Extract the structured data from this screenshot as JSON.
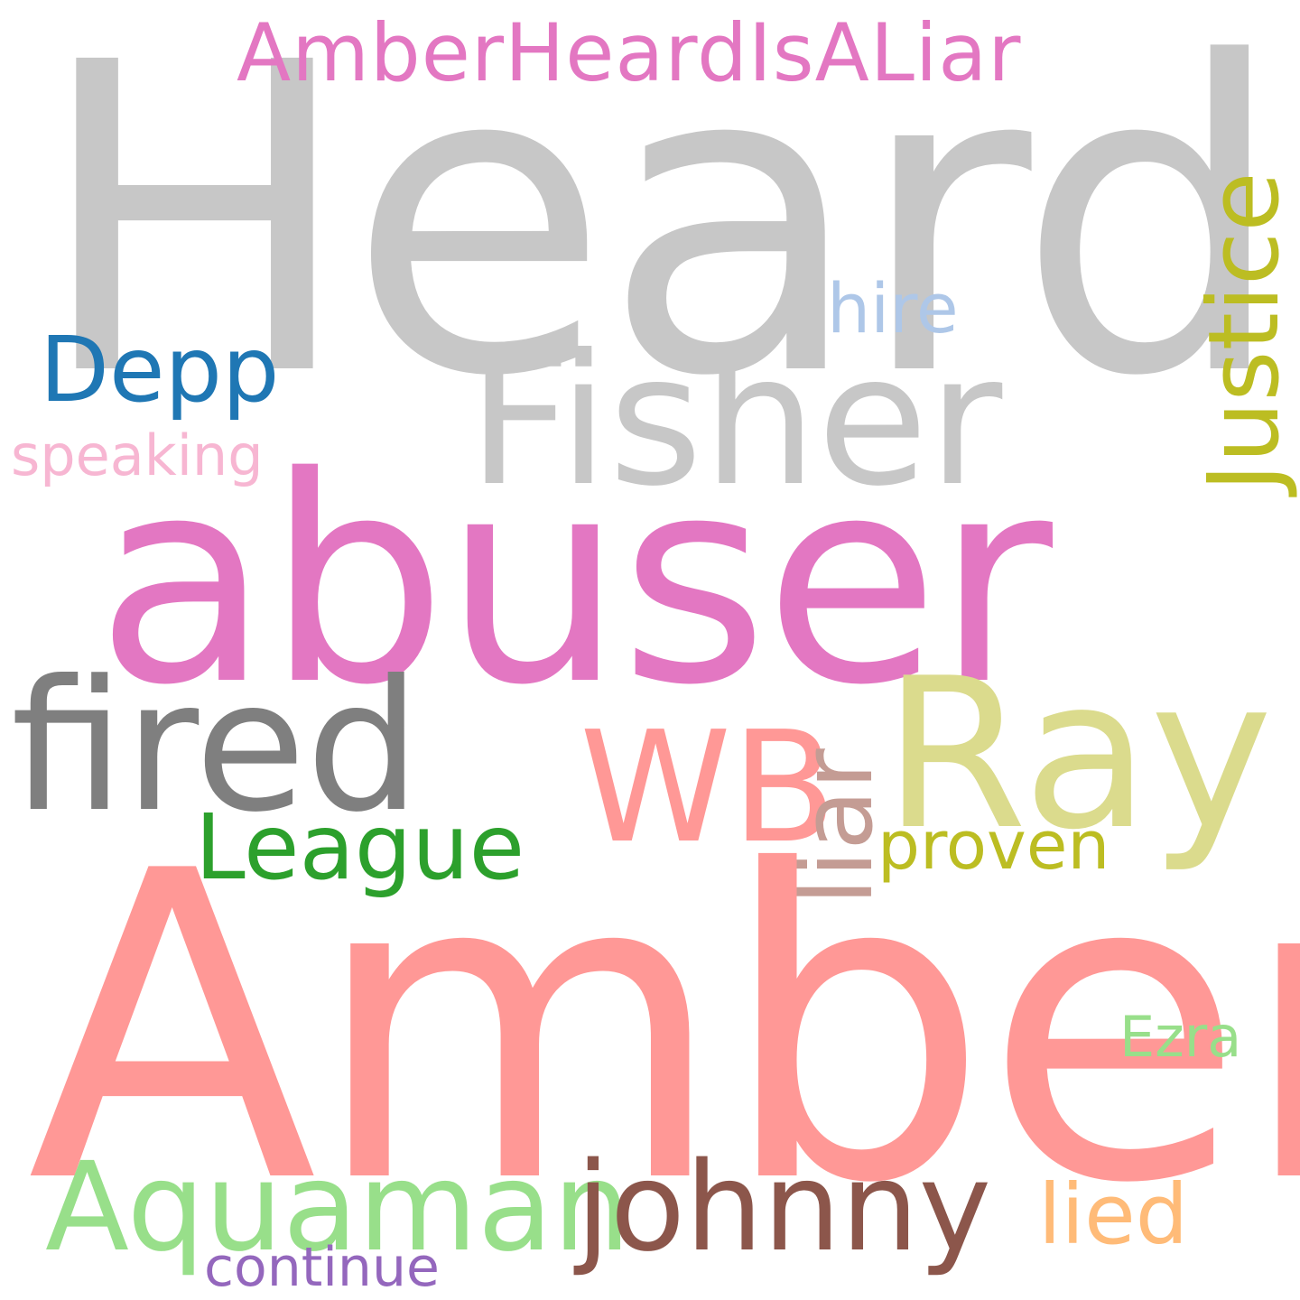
{
  "words": {
    "heard": {
      "text": "Heard",
      "color": "#c7c7c7"
    },
    "amber": {
      "text": "Amber",
      "color": "#ff9896"
    },
    "abuser": {
      "text": "abuser",
      "color": "#e377c2"
    },
    "fisher": {
      "text": "Fisher",
      "color": "#c7c7c7"
    },
    "ray": {
      "text": "Ray",
      "color": "#dbdb8d"
    },
    "fired": {
      "text": "fired",
      "color": "#7f7f7f"
    },
    "wb": {
      "text": "WB",
      "color": "#ff9896"
    },
    "aquaman": {
      "text": "Aquaman",
      "color": "#98df8a"
    },
    "johnny": {
      "text": "johnny",
      "color": "#8c564b"
    },
    "amberliar": {
      "text": "AmberHeardIsALiar",
      "color": "#e377c2"
    },
    "justice": {
      "text": "Justice",
      "color": "#bcbd22"
    },
    "league": {
      "text": "League",
      "color": "#2ca02c"
    },
    "depp": {
      "text": "Depp",
      "color": "#1f77b4"
    },
    "liar": {
      "text": "liar",
      "color": "#c49c94"
    },
    "lied": {
      "text": "lied",
      "color": "#ffbb78"
    },
    "proven": {
      "text": "proven",
      "color": "#bcbd22"
    },
    "hire": {
      "text": "hire",
      "color": "#aec7e8"
    },
    "ezra": {
      "text": "Ezra",
      "color": "#98df8a"
    },
    "speaking": {
      "text": "speaking",
      "color": "#f7b6d2"
    },
    "continue": {
      "text": "continue",
      "color": "#9467bd"
    }
  },
  "background": "#ffffff"
}
